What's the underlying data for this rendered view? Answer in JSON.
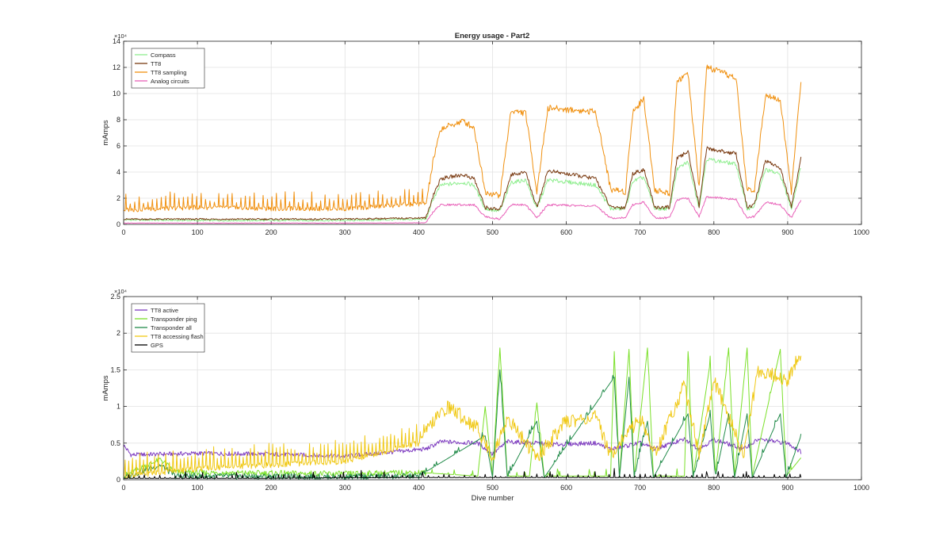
{
  "figure": {
    "title": "Energy usage - Part2"
  },
  "chart_data": [
    {
      "type": "line",
      "title": "Energy usage - Part2",
      "xlabel": "",
      "ylabel": "mAmps",
      "y_exponent_label": "×10⁴",
      "xlim": [
        0,
        1000
      ],
      "ylim": [
        0,
        14
      ],
      "x_ticks": [
        "0",
        "100",
        "200",
        "300",
        "400",
        "500",
        "600",
        "700",
        "800",
        "900",
        "1000"
      ],
      "y_ticks": [
        "0",
        "2",
        "4",
        "6",
        "8",
        "10",
        "12",
        "14"
      ],
      "grid": true,
      "legend_position": "top-left",
      "series": [
        {
          "name": "Compass",
          "color": "#90ee90",
          "pattern": "compass",
          "points": [
            [
              0,
              0.35
            ],
            [
              100,
              0.3
            ],
            [
              200,
              0.3
            ],
            [
              300,
              0.3
            ],
            [
              410,
              0.4
            ],
            [
              420,
              2.0
            ],
            [
              430,
              3.0
            ],
            [
              460,
              3.2
            ],
            [
              475,
              3.0
            ],
            [
              490,
              1.2
            ],
            [
              510,
              1.0
            ],
            [
              525,
              3.2
            ],
            [
              545,
              3.4
            ],
            [
              560,
              1.2
            ],
            [
              575,
              3.4
            ],
            [
              640,
              3.0
            ],
            [
              660,
              1.2
            ],
            [
              680,
              1.2
            ],
            [
              690,
              3.3
            ],
            [
              705,
              3.6
            ],
            [
              720,
              1.2
            ],
            [
              740,
              1.2
            ],
            [
              750,
              4.2
            ],
            [
              765,
              4.8
            ],
            [
              780,
              1.3
            ],
            [
              790,
              5.0
            ],
            [
              830,
              4.6
            ],
            [
              845,
              1.2
            ],
            [
              855,
              1.4
            ],
            [
              870,
              4.2
            ],
            [
              890,
              3.8
            ],
            [
              905,
              1.2
            ],
            [
              918,
              4.4
            ]
          ]
        },
        {
          "name": "TT8",
          "color": "#7a3b12",
          "pattern": "tt8",
          "points": [
            [
              0,
              0.4
            ],
            [
              100,
              0.4
            ],
            [
              200,
              0.4
            ],
            [
              300,
              0.4
            ],
            [
              410,
              0.5
            ],
            [
              420,
              2.3
            ],
            [
              430,
              3.5
            ],
            [
              460,
              3.8
            ],
            [
              475,
              3.5
            ],
            [
              490,
              1.3
            ],
            [
              510,
              1.1
            ],
            [
              525,
              3.8
            ],
            [
              545,
              4.0
            ],
            [
              560,
              1.3
            ],
            [
              575,
              4.1
            ],
            [
              640,
              3.5
            ],
            [
              660,
              1.3
            ],
            [
              680,
              1.3
            ],
            [
              690,
              3.9
            ],
            [
              705,
              4.2
            ],
            [
              720,
              1.3
            ],
            [
              740,
              1.3
            ],
            [
              750,
              5.0
            ],
            [
              765,
              5.6
            ],
            [
              780,
              1.4
            ],
            [
              790,
              5.8
            ],
            [
              830,
              5.4
            ],
            [
              845,
              1.3
            ],
            [
              855,
              1.5
            ],
            [
              870,
              4.9
            ],
            [
              890,
              4.3
            ],
            [
              905,
              1.3
            ],
            [
              918,
              5.1
            ]
          ]
        },
        {
          "name": "TT8 sampling",
          "color": "#f0900f",
          "pattern": "sampling",
          "points": [
            [
              0,
              1.1
            ],
            [
              100,
              1.3
            ],
            [
              200,
              1.2
            ],
            [
              300,
              1.2
            ],
            [
              410,
              1.6
            ],
            [
              420,
              5.0
            ],
            [
              430,
              7.3
            ],
            [
              460,
              7.9
            ],
            [
              475,
              7.4
            ],
            [
              490,
              2.5
            ],
            [
              510,
              2.2
            ],
            [
              525,
              8.7
            ],
            [
              545,
              8.5
            ],
            [
              560,
              2.5
            ],
            [
              575,
              8.9
            ],
            [
              640,
              8.6
            ],
            [
              660,
              2.7
            ],
            [
              680,
              2.5
            ],
            [
              690,
              8.6
            ],
            [
              705,
              9.6
            ],
            [
              720,
              2.6
            ],
            [
              740,
              2.4
            ],
            [
              750,
              11.0
            ],
            [
              765,
              11.5
            ],
            [
              780,
              2.8
            ],
            [
              790,
              12.0
            ],
            [
              830,
              11.2
            ],
            [
              845,
              2.6
            ],
            [
              855,
              2.7
            ],
            [
              870,
              10.0
            ],
            [
              890,
              9.5
            ],
            [
              905,
              2.5
            ],
            [
              918,
              11.0
            ]
          ]
        },
        {
          "name": "Analog circuits",
          "color": "#e860b8",
          "pattern": "analog",
          "points": [
            [
              0,
              0.1
            ],
            [
              100,
              0.1
            ],
            [
              200,
              0.1
            ],
            [
              300,
              0.1
            ],
            [
              410,
              0.12
            ],
            [
              420,
              1.0
            ],
            [
              430,
              1.5
            ],
            [
              460,
              1.5
            ],
            [
              475,
              1.5
            ],
            [
              490,
              0.6
            ],
            [
              510,
              0.4
            ],
            [
              525,
              1.5
            ],
            [
              545,
              1.5
            ],
            [
              560,
              0.5
            ],
            [
              575,
              1.5
            ],
            [
              640,
              1.4
            ],
            [
              660,
              0.5
            ],
            [
              680,
              0.5
            ],
            [
              690,
              1.5
            ],
            [
              705,
              1.7
            ],
            [
              720,
              0.5
            ],
            [
              740,
              0.5
            ],
            [
              750,
              1.9
            ],
            [
              765,
              2.0
            ],
            [
              780,
              0.6
            ],
            [
              790,
              2.1
            ],
            [
              830,
              1.9
            ],
            [
              845,
              0.5
            ],
            [
              855,
              0.6
            ],
            [
              870,
              1.7
            ],
            [
              890,
              1.5
            ],
            [
              905,
              0.5
            ],
            [
              918,
              1.9
            ]
          ]
        }
      ]
    },
    {
      "type": "line",
      "title": "",
      "xlabel": "Dive number",
      "ylabel": "mAmps",
      "y_exponent_label": "×10⁴",
      "xlim": [
        0,
        1000
      ],
      "ylim": [
        0,
        2.5
      ],
      "x_ticks": [
        "0",
        "100",
        "200",
        "300",
        "400",
        "500",
        "600",
        "700",
        "800",
        "900",
        "1000"
      ],
      "y_ticks": [
        "0",
        "0.5",
        "1",
        "1.5",
        "2",
        "2.5"
      ],
      "grid": true,
      "legend_position": "top-left",
      "series": [
        {
          "name": "TT8 active",
          "color": "#7e3cc0",
          "pattern": "active",
          "points": [
            [
              0,
              0.47
            ],
            [
              10,
              0.34
            ],
            [
              100,
              0.36
            ],
            [
              200,
              0.35
            ],
            [
              300,
              0.32
            ],
            [
              410,
              0.42
            ],
            [
              430,
              0.52
            ],
            [
              480,
              0.5
            ],
            [
              500,
              0.35
            ],
            [
              520,
              0.52
            ],
            [
              560,
              0.5
            ],
            [
              580,
              0.48
            ],
            [
              640,
              0.5
            ],
            [
              660,
              0.42
            ],
            [
              700,
              0.5
            ],
            [
              720,
              0.42
            ],
            [
              760,
              0.55
            ],
            [
              780,
              0.42
            ],
            [
              800,
              0.55
            ],
            [
              840,
              0.42
            ],
            [
              860,
              0.55
            ],
            [
              900,
              0.5
            ],
            [
              918,
              0.38
            ]
          ]
        },
        {
          "name": "Transponder ping",
          "color": "#7be02a",
          "pattern": "ping",
          "points": [
            [
              0,
              0.05
            ],
            [
              50,
              0.28
            ],
            [
              70,
              0.1
            ],
            [
              300,
              0.08
            ],
            [
              400,
              0.1
            ],
            [
              480,
              0.05
            ],
            [
              490,
              1.0
            ],
            [
              500,
              0.05
            ],
            [
              510,
              1.8
            ],
            [
              520,
              0.05
            ],
            [
              550,
              0.05
            ],
            [
              560,
              1.05
            ],
            [
              570,
              0.05
            ],
            [
              660,
              0.05
            ],
            [
              665,
              1.75
            ],
            [
              672,
              0.05
            ],
            [
              685,
              1.78
            ],
            [
              692,
              0.05
            ],
            [
              710,
              1.8
            ],
            [
              718,
              0.05
            ],
            [
              760,
              0.05
            ],
            [
              765,
              1.75
            ],
            [
              772,
              0.05
            ],
            [
              795,
              1.6
            ],
            [
              802,
              0.05
            ],
            [
              820,
              1.8
            ],
            [
              828,
              0.05
            ],
            [
              845,
              1.8
            ],
            [
              852,
              0.05
            ],
            [
              890,
              1.78
            ],
            [
              898,
              0.05
            ],
            [
              918,
              0.3
            ]
          ]
        },
        {
          "name": "Transponder all",
          "color": "#228b4a",
          "pattern": "all",
          "points": [
            [
              0,
              0.03
            ],
            [
              50,
              0.2
            ],
            [
              70,
              0.05
            ],
            [
              300,
              0.04
            ],
            [
              400,
              0.05
            ],
            [
              490,
              0.6
            ],
            [
              500,
              0.03
            ],
            [
              510,
              1.5
            ],
            [
              520,
              0.03
            ],
            [
              560,
              0.8
            ],
            [
              570,
              0.03
            ],
            [
              665,
              1.4
            ],
            [
              672,
              0.03
            ],
            [
              685,
              1.4
            ],
            [
              692,
              0.03
            ],
            [
              710,
              0.8
            ],
            [
              718,
              0.03
            ],
            [
              765,
              0.9
            ],
            [
              772,
              0.03
            ],
            [
              795,
              0.9
            ],
            [
              802,
              0.03
            ],
            [
              820,
              0.9
            ],
            [
              828,
              0.03
            ],
            [
              845,
              0.9
            ],
            [
              852,
              0.03
            ],
            [
              890,
              0.9
            ],
            [
              898,
              0.03
            ],
            [
              918,
              0.6
            ]
          ]
        },
        {
          "name": "TT8 accessing flash",
          "color": "#f0c814",
          "pattern": "flash",
          "points": [
            [
              0,
              0.05
            ],
            [
              100,
              0.15
            ],
            [
              200,
              0.2
            ],
            [
              300,
              0.25
            ],
            [
              400,
              0.5
            ],
            [
              420,
              0.8
            ],
            [
              440,
              1.0
            ],
            [
              480,
              0.7
            ],
            [
              500,
              0.3
            ],
            [
              520,
              0.85
            ],
            [
              560,
              0.3
            ],
            [
              600,
              0.8
            ],
            [
              640,
              0.85
            ],
            [
              660,
              0.35
            ],
            [
              700,
              0.85
            ],
            [
              720,
              0.35
            ],
            [
              760,
              1.3
            ],
            [
              780,
              0.35
            ],
            [
              800,
              1.35
            ],
            [
              840,
              0.35
            ],
            [
              860,
              1.5
            ],
            [
              900,
              1.35
            ],
            [
              918,
              1.75
            ]
          ]
        },
        {
          "name": "GPS",
          "color": "#000000",
          "pattern": "gps",
          "points": [
            [
              0,
              0.02
            ],
            [
              100,
              0.02
            ],
            [
              200,
              0.02
            ],
            [
              400,
              0.03
            ],
            [
              500,
              0.03
            ],
            [
              700,
              0.03
            ],
            [
              918,
              0.03
            ]
          ]
        }
      ]
    }
  ]
}
